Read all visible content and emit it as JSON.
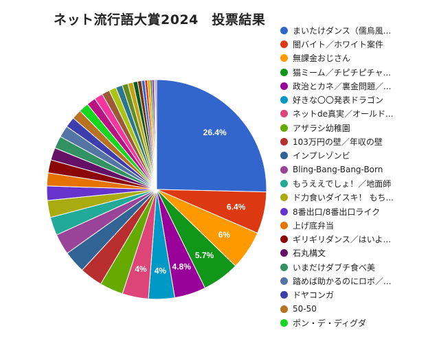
{
  "chart_data": {
    "type": "pie",
    "title": "ネット流行語大賞2024　投票結果",
    "legend_position": "right",
    "slices": [
      {
        "label": "まいたけダンス（儒烏風亭らでん）",
        "legend_text": "まいたけダンス（儒烏風...",
        "value": 26.4,
        "color": "#3366cc",
        "show_label": true,
        "display": "26.4%"
      },
      {
        "label": "闇バイト／ホワイト案件",
        "legend_text": "闇バイト／ホワイト案件",
        "value": 6.4,
        "color": "#dc3912",
        "show_label": true,
        "display": "6.4%"
      },
      {
        "label": "無課金おじさん",
        "legend_text": "無課金おじさん",
        "value": 6.0,
        "color": "#ff9900",
        "show_label": true,
        "display": "6%"
      },
      {
        "label": "猫ミーム／チピチピチャパチャパ",
        "legend_text": "猫ミーム／チピチピチャ...",
        "value": 5.7,
        "color": "#109618",
        "show_label": true,
        "display": "5.7%"
      },
      {
        "label": "政治とカネ／裏金問題",
        "legend_text": "政治とカネ／裏金問題／...",
        "value": 4.8,
        "color": "#990099",
        "show_label": true,
        "display": "4.8%"
      },
      {
        "label": "好きな〇〇発表ドラゴン",
        "legend_text": "好きな〇〇発表ドラゴン",
        "value": 4.0,
        "color": "#0099c6",
        "show_label": true,
        "display": "4%"
      },
      {
        "label": "ネットde真実／オールドメディア",
        "legend_text": "ネットde真実／オールド...",
        "value": 4.0,
        "color": "#dd4477",
        "show_label": true,
        "display": "4%"
      },
      {
        "label": "アザラシ幼稚園",
        "legend_text": "アザラシ幼稚園",
        "value": 3.6,
        "color": "#66aa00",
        "show_label": false,
        "display": ""
      },
      {
        "label": "103万円の壁／年収の壁",
        "legend_text": "103万円の壁／年収の壁",
        "value": 3.5,
        "color": "#b82e2e",
        "show_label": false,
        "display": ""
      },
      {
        "label": "インプレゾンビ",
        "legend_text": "インプレゾンビ",
        "value": 3.4,
        "color": "#316395",
        "show_label": false,
        "display": ""
      },
      {
        "label": "Bling-Bang-Bang-Born",
        "legend_text": "Bling-Bang-Bang-Born",
        "value": 3.2,
        "color": "#994499",
        "show_label": false,
        "display": ""
      },
      {
        "label": "もうええでしょ！／地面師",
        "legend_text": "もうええでしょ！／地面師",
        "value": 2.8,
        "color": "#22aa99",
        "show_label": false,
        "display": ""
      },
      {
        "label": "ド力食いダイスキ！ もちもち",
        "legend_text": "ド力食いダイスキ！ もち...",
        "value": 2.6,
        "color": "#aaaa11",
        "show_label": false,
        "display": ""
      },
      {
        "label": "8番出口/8番出口ライク",
        "legend_text": "8番出口/8番出口ライク",
        "value": 2.2,
        "color": "#6633cc",
        "show_label": false,
        "display": ""
      },
      {
        "label": "上げ底弁当",
        "legend_text": "上げ底弁当",
        "value": 2.0,
        "color": "#e67300",
        "show_label": false,
        "display": ""
      },
      {
        "label": "ギリギリダンス／はいよろこんで",
        "legend_text": "ギリギリダンス／はいよ...",
        "value": 2.0,
        "color": "#8b0707",
        "show_label": false,
        "display": ""
      },
      {
        "label": "石丸構文",
        "legend_text": "石丸構文",
        "value": 1.9,
        "color": "#651067",
        "show_label": false,
        "display": ""
      },
      {
        "label": "いまだけダブチ食べ美",
        "legend_text": "いまだけダブチ食べ美",
        "value": 1.9,
        "color": "#329262",
        "show_label": false,
        "display": ""
      },
      {
        "label": "踏めば助かるのにロボ",
        "legend_text": "踏めば助かるのにロボ／...",
        "value": 1.8,
        "color": "#5574a6",
        "show_label": false,
        "display": ""
      },
      {
        "label": "ドヤコンガ",
        "legend_text": "ドヤコンガ",
        "value": 1.6,
        "color": "#3b3eac",
        "show_label": false,
        "display": ""
      },
      {
        "label": "50-50",
        "legend_text": "50-50",
        "value": 1.5,
        "color": "#b77322",
        "show_label": false,
        "display": ""
      },
      {
        "label": "ポン・デ・ディグダ",
        "legend_text": "ポン・デ・ディグダ",
        "value": 1.5,
        "color": "#16d620",
        "show_label": false,
        "display": ""
      },
      {
        "label": "",
        "legend_text": "",
        "value": 1.4,
        "color": "#b91383",
        "show_label": false,
        "display": "",
        "in_legend": false
      },
      {
        "label": "",
        "legend_text": "",
        "value": 1.3,
        "color": "#f4359e",
        "show_label": false,
        "display": "",
        "in_legend": false
      },
      {
        "label": "",
        "legend_text": "",
        "value": 1.2,
        "color": "#9c5935",
        "show_label": false,
        "display": "",
        "in_legend": false
      },
      {
        "label": "",
        "legend_text": "",
        "value": 1.1,
        "color": "#a9c413",
        "show_label": false,
        "display": "",
        "in_legend": false
      },
      {
        "label": "",
        "legend_text": "",
        "value": 1.0,
        "color": "#2a778d",
        "show_label": false,
        "display": "",
        "in_legend": false
      },
      {
        "label": "",
        "legend_text": "",
        "value": 0.9,
        "color": "#668d1c",
        "show_label": false,
        "display": "",
        "in_legend": false
      },
      {
        "label": "",
        "legend_text": "",
        "value": 0.8,
        "color": "#bea413",
        "show_label": false,
        "display": "",
        "in_legend": false
      },
      {
        "label": "",
        "legend_text": "",
        "value": 0.7,
        "color": "#0c5922",
        "show_label": false,
        "display": "",
        "in_legend": false
      },
      {
        "label": "",
        "legend_text": "",
        "value": 0.6,
        "color": "#743411",
        "show_label": false,
        "display": "",
        "in_legend": false
      },
      {
        "label": "",
        "legend_text": "",
        "value": 0.5,
        "color": "#3366cc",
        "show_label": false,
        "display": "",
        "in_legend": false
      },
      {
        "label": "",
        "legend_text": "",
        "value": 0.4,
        "color": "#dc3912",
        "show_label": false,
        "display": "",
        "in_legend": false
      },
      {
        "label": "",
        "legend_text": "",
        "value": 0.4,
        "color": "#ff9900",
        "show_label": false,
        "display": "",
        "in_legend": false
      },
      {
        "label": "",
        "legend_text": "",
        "value": 0.3,
        "color": "#109618",
        "show_label": false,
        "display": "",
        "in_legend": false
      },
      {
        "label": "",
        "legend_text": "",
        "value": 0.3,
        "color": "#990099",
        "show_label": false,
        "display": "",
        "in_legend": false
      },
      {
        "label": "",
        "legend_text": "",
        "value": 0.2,
        "color": "#0099c6",
        "show_label": false,
        "display": "",
        "in_legend": false
      },
      {
        "label": "",
        "legend_text": "",
        "value": 0.2,
        "color": "#dd4477",
        "show_label": false,
        "display": "",
        "in_legend": false
      }
    ]
  }
}
